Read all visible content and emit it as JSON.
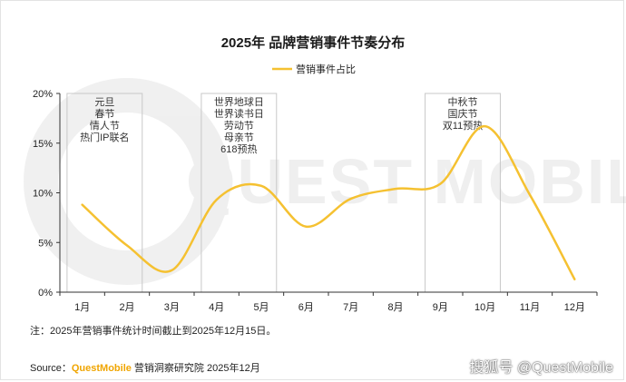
{
  "chart_data": {
    "type": "line",
    "title": "2025年 品牌营销事件节奏分布",
    "legend": {
      "position": "top-center",
      "label": "营销事件占比"
    },
    "categories": [
      "1月",
      "2月",
      "3月",
      "4月",
      "5月",
      "6月",
      "7月",
      "8月",
      "9月",
      "10月",
      "11月",
      "12月"
    ],
    "series": [
      {
        "name": "营销事件占比",
        "values": [
          8.8,
          4.7,
          2.2,
          9.3,
          10.7,
          6.6,
          9.4,
          10.4,
          10.9,
          16.7,
          9.8,
          1.3
        ]
      }
    ],
    "ylim": [
      0,
      20
    ],
    "yticks": [
      "0%",
      "5%",
      "10%",
      "15%",
      "20%"
    ],
    "grid": false,
    "line_color": "#f5c131",
    "annotations": [
      {
        "from": "1月",
        "to": "2月",
        "lines": [
          "元旦",
          "春节",
          "情人节",
          "热门IP联名"
        ]
      },
      {
        "from": "4月",
        "to": "5月",
        "lines": [
          "世界地球日",
          "世界读书日",
          "劳动节",
          "母亲节",
          "618预热"
        ]
      },
      {
        "from": "9月",
        "to": "10月",
        "lines": [
          "中秋节",
          "国庆节",
          "双11预热"
        ]
      }
    ]
  },
  "note": "注：2025年营销事件统计时间截止到2025年12月15日。",
  "source": {
    "prefix": "Source：",
    "brand": "QuestMobile",
    "rest": " 营销洞察研究院 2025年12月"
  },
  "watermark_text": "QUEST MOBILE",
  "corner_credit": "搜狐号 @QuestMobile",
  "colors": {
    "accent": "#f5c131",
    "brand": "#f0a500"
  }
}
